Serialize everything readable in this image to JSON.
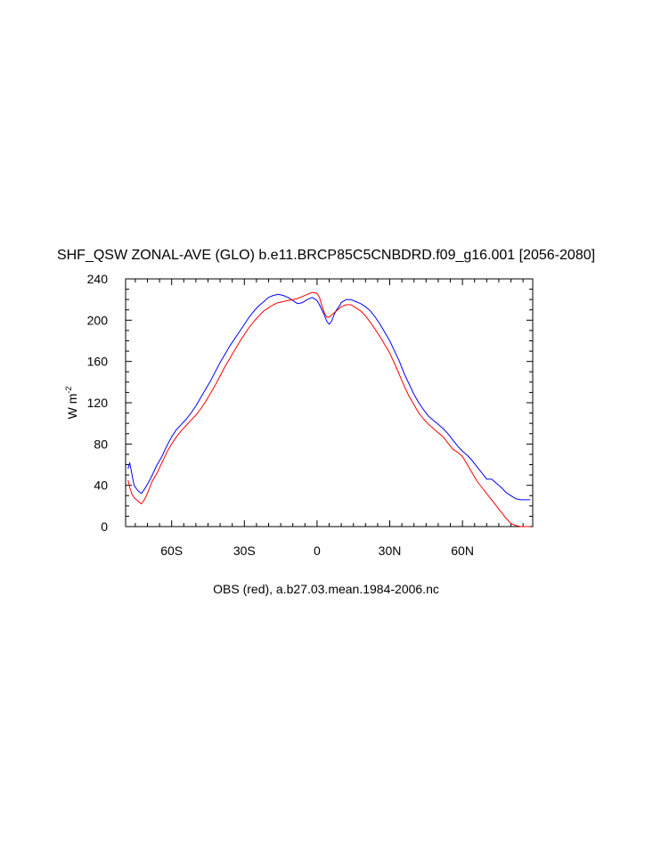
{
  "chart_data": {
    "type": "line",
    "title": "SHF_QSW ZONAL-AVE (GLO) b.e11.BRCP85C5CNBDRD.f09_g16.001 [2056-2080]",
    "xlabel": "OBS (red), a.b27.03.mean.1984-2006.nc",
    "ylabel": "W m",
    "ylabel_sup": "-2",
    "xlim": [
      -79,
      89
    ],
    "ylim": [
      0,
      240
    ],
    "x_ticks": [
      {
        "value": -60,
        "label": "60S"
      },
      {
        "value": -30,
        "label": "30S"
      },
      {
        "value": 0,
        "label": "0"
      },
      {
        "value": 30,
        "label": "30N"
      },
      {
        "value": 60,
        "label": "60N"
      }
    ],
    "y_ticks": [
      0,
      40,
      80,
      120,
      160,
      200,
      240
    ],
    "series": [
      {
        "color": "#0000ff",
        "x": [
          -78,
          -77.3,
          -76.5,
          -75.5,
          -74,
          -72.5,
          -71,
          -69.5,
          -68,
          -66,
          -64,
          -62,
          -60,
          -58,
          -56,
          -54,
          -52,
          -50,
          -48,
          -46,
          -44,
          -42,
          -40,
          -38,
          -36,
          -34,
          -32,
          -30,
          -28,
          -26,
          -24,
          -22,
          -20,
          -18,
          -16,
          -14,
          -12,
          -10,
          -8,
          -6,
          -4,
          -2,
          0,
          1,
          2,
          3,
          4,
          5,
          6,
          7,
          8,
          9,
          10,
          12,
          14,
          16,
          18,
          20,
          22,
          24,
          26,
          28,
          30,
          32,
          34,
          36,
          38,
          40,
          42,
          44,
          46,
          48,
          50,
          52,
          54,
          56,
          58,
          60,
          62,
          64,
          66,
          68,
          70,
          72,
          74,
          76,
          78,
          80,
          82,
          84,
          86,
          88
        ],
        "y": [
          56,
          62,
          52,
          40,
          35,
          32,
          37,
          43,
          50,
          60,
          68,
          78,
          87,
          94,
          99,
          104,
          110,
          117,
          125,
          133,
          141,
          150,
          159,
          167,
          175,
          182,
          189,
          196,
          203,
          209,
          214,
          218,
          222,
          224,
          225,
          224,
          222,
          219,
          216,
          217,
          220,
          222,
          219,
          215,
          210,
          205,
          199,
          196,
          199,
          205,
          210,
          213,
          217,
          220,
          220,
          218,
          216,
          213,
          209,
          203,
          196,
          188,
          180,
          170,
          160,
          148,
          138,
          128,
          120,
          113,
          107,
          103,
          99,
          95,
          90,
          84,
          78,
          73,
          69,
          64,
          58,
          52,
          46,
          46,
          42,
          38,
          33,
          30,
          27,
          26,
          26,
          26
        ]
      },
      {
        "color": "#ff0000",
        "x": [
          -78,
          -77.3,
          -76.5,
          -75.5,
          -74.5,
          -73.5,
          -72.5,
          -71,
          -69.5,
          -68,
          -66,
          -64,
          -62,
          -60,
          -58,
          -56,
          -54,
          -52,
          -50,
          -48,
          -46,
          -44,
          -42,
          -40,
          -38,
          -36,
          -34,
          -32,
          -30,
          -28,
          -26,
          -24,
          -22,
          -20,
          -18,
          -16,
          -14,
          -12,
          -10,
          -8,
          -6,
          -4,
          -2,
          0,
          1,
          2,
          3,
          4,
          5,
          6,
          7,
          8,
          9,
          10,
          12,
          14,
          16,
          18,
          20,
          22,
          24,
          26,
          28,
          30,
          32,
          34,
          36,
          38,
          40,
          42,
          44,
          46,
          48,
          50,
          52,
          54,
          56,
          58,
          60,
          62,
          64,
          66,
          68,
          70,
          72,
          74,
          76,
          78,
          80,
          82,
          84,
          86,
          88
        ],
        "y": [
          45,
          38,
          32,
          28,
          26,
          24,
          22,
          27,
          35,
          44,
          52,
          62,
          72,
          80,
          87,
          93,
          98,
          103,
          108,
          114,
          121,
          129,
          137,
          146,
          155,
          163,
          171,
          179,
          186,
          193,
          199,
          204,
          209,
          212,
          215,
          217,
          218,
          219,
          220,
          221,
          223,
          225,
          227,
          226,
          222,
          214,
          207,
          203,
          203,
          205,
          207,
          209,
          211,
          213,
          215,
          215,
          212,
          209,
          204,
          198,
          191,
          184,
          176,
          168,
          158,
          147,
          136,
          126,
          118,
          110,
          104,
          99,
          95,
          91,
          87,
          81,
          75,
          72,
          68,
          60,
          52,
          44,
          38,
          32,
          26,
          20,
          14,
          8,
          3,
          1,
          0,
          0,
          0
        ]
      }
    ]
  }
}
